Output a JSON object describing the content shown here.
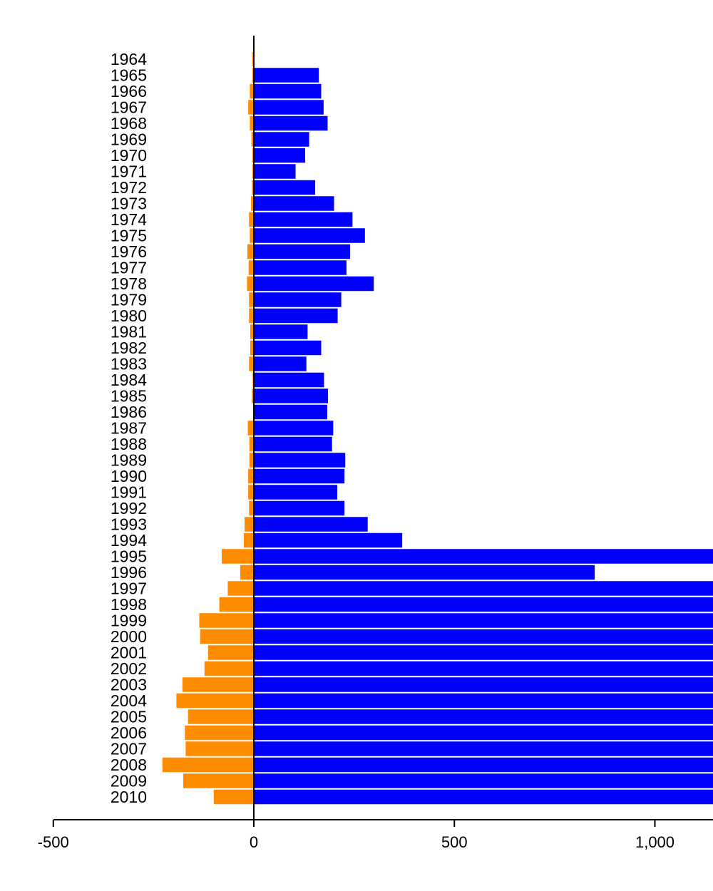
{
  "chart_data": {
    "type": "bar",
    "orientation": "horizontal",
    "categories": [
      "1964",
      "1965",
      "1966",
      "1967",
      "1968",
      "1969",
      "1970",
      "1971",
      "1972",
      "1973",
      "1974",
      "1975",
      "1976",
      "1977",
      "1978",
      "1979",
      "1980",
      "1981",
      "1982",
      "1983",
      "1984",
      "1985",
      "1986",
      "1987",
      "1988",
      "1989",
      "1990",
      "1991",
      "1992",
      "1993",
      "1994",
      "1995",
      "1996",
      "1997",
      "1998",
      "1999",
      "2000",
      "2001",
      "2002",
      "2003",
      "2004",
      "2005",
      "2006",
      "2007",
      "2008",
      "2009",
      "2010"
    ],
    "series": [
      {
        "color": "#FF8C00",
        "values": [
          -4,
          -4,
          -10,
          -14,
          -10,
          -6,
          -4,
          -4,
          -5,
          -7,
          -12,
          -10,
          -16,
          -13,
          -17,
          -12,
          -12,
          -9,
          -9,
          -12,
          -3,
          -5,
          -1,
          -15,
          -11,
          -11,
          -14,
          -14,
          -12,
          -23,
          -25,
          -80,
          -34,
          -65,
          -86,
          -136,
          -134,
          -114,
          -123,
          -178,
          -193,
          -164,
          -172,
          -170,
          -228,
          -176,
          -100
        ]
      },
      {
        "color": "#0000FF",
        "values": [
          0,
          162,
          168,
          174,
          184,
          138,
          128,
          104,
          153,
          200,
          246,
          277,
          240,
          231,
          299,
          218,
          209,
          134,
          168,
          131,
          175,
          185,
          183,
          198,
          195,
          228,
          226,
          208,
          226,
          284,
          370,
          1150,
          850,
          1150,
          1150,
          1150,
          1150,
          1150,
          1150,
          1150,
          1150,
          1150,
          1150,
          1150,
          1150,
          1150,
          1150
        ]
      }
    ],
    "xlim": [
      -500,
      1140
    ],
    "xticks": [
      "-500",
      "0",
      "500",
      "1,000"
    ],
    "xtick_values": [
      -500,
      0,
      500,
      1000
    ],
    "title": "",
    "xlabel": "",
    "ylabel": "",
    "grid": false,
    "legend": "none"
  }
}
